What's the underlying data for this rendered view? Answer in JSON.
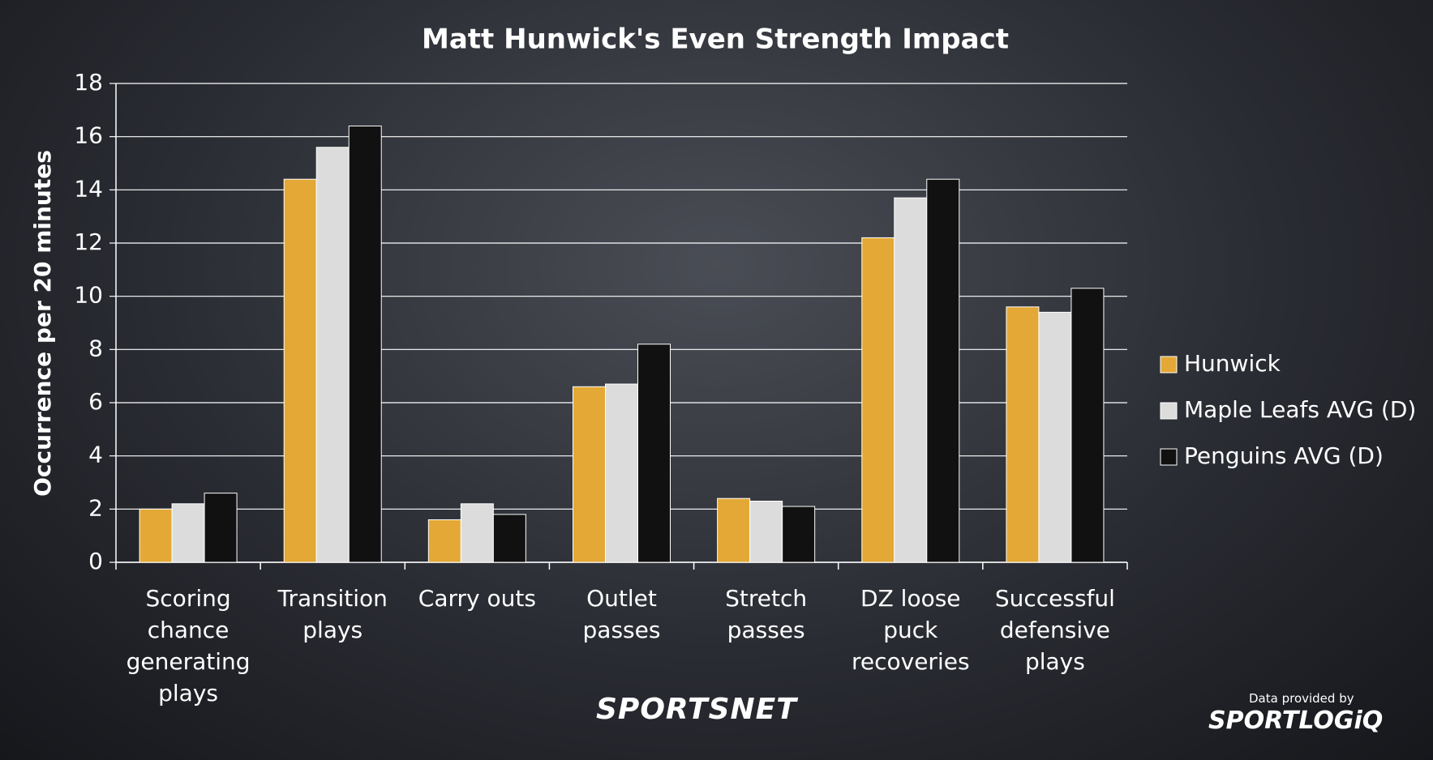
{
  "chart_data": {
    "type": "bar",
    "title": "Matt Hunwick's Even Strength Impact",
    "ylabel": "Occurrence per 20 minutes",
    "categories": [
      "Scoring chance generating plays",
      "Transition plays",
      "Carry outs",
      "Outlet passes",
      "Stretch passes",
      "DZ loose puck recoveries",
      "Successful defensive plays"
    ],
    "series": [
      {
        "name": "Hunwick",
        "color": "#e3a835",
        "values": [
          2.0,
          14.4,
          1.6,
          6.6,
          2.4,
          12.2,
          9.6
        ]
      },
      {
        "name": "Maple Leafs AVG (D)",
        "color": "#dcdcdc",
        "values": [
          2.2,
          15.6,
          2.2,
          6.7,
          2.3,
          13.7,
          9.4
        ]
      },
      {
        "name": "Penguins AVG (D)",
        "color": "#111111",
        "values": [
          2.6,
          16.4,
          1.8,
          8.2,
          2.1,
          14.4,
          10.3
        ]
      }
    ],
    "ylim": [
      0,
      18
    ],
    "yticks": [
      0,
      2,
      4,
      6,
      8,
      10,
      12,
      14,
      16,
      18
    ],
    "grid": true,
    "legend": "right",
    "brand": "SPORTSNET",
    "source_note": "Data provided by",
    "source_logo": "SPORTLOGiQ"
  }
}
